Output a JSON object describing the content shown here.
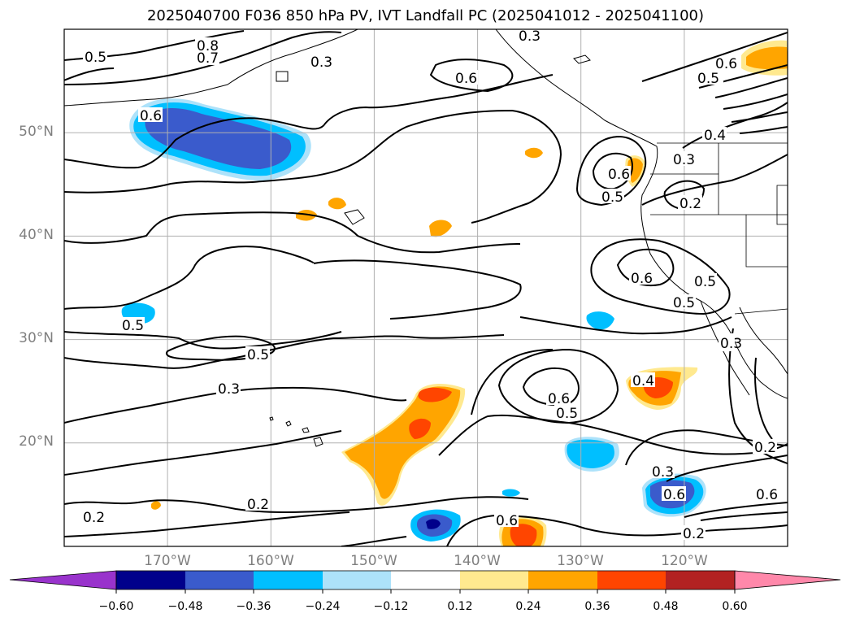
{
  "title": "2025040700 F036 850 hPa PV, IVT Landfall PC (2025041012 - 2025041100)",
  "lat_labels": [
    "50°N",
    "40°N",
    "30°N",
    "20°N"
  ],
  "lon_labels": [
    "170°W",
    "160°W",
    "150°W",
    "140°W",
    "130°W",
    "120°W"
  ],
  "colorbar": {
    "tick_labels": [
      "−0.60",
      "−0.48",
      "−0.36",
      "−0.24",
      "−0.12",
      "0.12",
      "0.24",
      "0.36",
      "0.48",
      "0.60"
    ],
    "colors": [
      "#9933cc",
      "#00008b",
      "#3a5bcc",
      "#00bfff",
      "#ade2fa",
      "#ffffff",
      "#ffe98f",
      "#ffa500",
      "#ff4500",
      "#b22222",
      "#ff88aa"
    ]
  },
  "contour_labels": [
    "0.8",
    "0.7",
    "0.5",
    "0.6",
    "0.6",
    "0.3",
    "0.6",
    "0.3",
    "0.5",
    "0.4",
    "0.3",
    "0.2",
    "0.6",
    "0.5",
    "0.5",
    "0.6",
    "0.6",
    "0.5",
    "0.5",
    "0.3",
    "0.3",
    "0.6",
    "0.5",
    "0.4",
    "0.2",
    "0.3",
    "0.6",
    "0.5",
    "0.2",
    "0.2",
    "0.2",
    "0.6"
  ],
  "map_extent": {
    "lon_min": -180,
    "lon_max": -110,
    "lat_min": 10,
    "lat_max": 60
  }
}
